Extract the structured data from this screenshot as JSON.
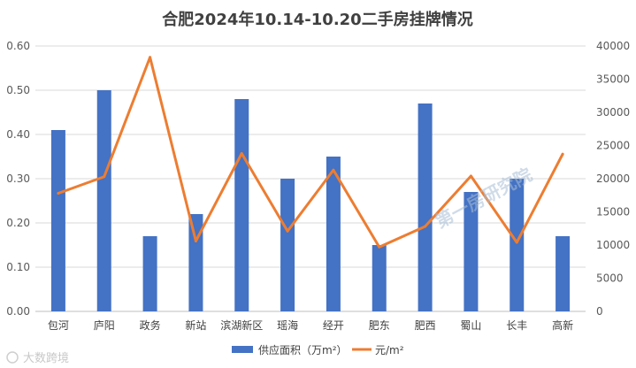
{
  "chart_data": {
    "type": "bar",
    "title": "合肥2024年10.14-10.20二手房挂牌情况",
    "categories": [
      "包河",
      "庐阳",
      "政务",
      "新站",
      "滨湖新区",
      "瑶海",
      "经开",
      "肥东",
      "肥西",
      "蜀山",
      "长丰",
      "高新"
    ],
    "series": [
      {
        "name": "供应面积（万m²）",
        "type": "bar",
        "axis": "left",
        "color": "#4472C4",
        "values": [
          0.41,
          0.5,
          0.17,
          0.22,
          0.48,
          0.3,
          0.35,
          0.15,
          0.47,
          0.27,
          0.3,
          0.17
        ]
      },
      {
        "name": "元/m²",
        "type": "line",
        "axis": "right",
        "color": "#ED7D31",
        "values": [
          17800,
          20300,
          38300,
          10600,
          23800,
          12100,
          21300,
          9700,
          12800,
          20400,
          10400,
          23700
        ]
      }
    ],
    "y_left": {
      "min": 0,
      "max": 0.6,
      "step": 0.1,
      "ticks": [
        "0.00",
        "0.10",
        "0.20",
        "0.30",
        "0.40",
        "0.50",
        "0.60"
      ]
    },
    "y_right": {
      "min": 0,
      "max": 40000,
      "step": 5000,
      "ticks": [
        "0",
        "5000",
        "10000",
        "15000",
        "20000",
        "25000",
        "30000",
        "35000",
        "40000"
      ]
    },
    "grid": true,
    "legend_position": "bottom"
  },
  "watermark": "第一房研究院",
  "source_label": "大数跨境"
}
